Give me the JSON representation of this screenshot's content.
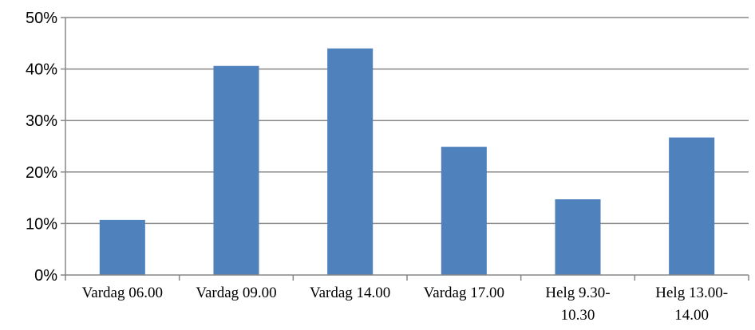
{
  "chart_data": {
    "type": "bar",
    "title": "",
    "xlabel": "",
    "ylabel": "",
    "categories": [
      [
        "Vardag 06.00"
      ],
      [
        "Vardag 09.00"
      ],
      [
        "Vardag 14.00"
      ],
      [
        "Vardag 17.00"
      ],
      [
        "Helg 9.30-",
        "10.30"
      ],
      [
        "Helg 13.00-",
        "14.00"
      ]
    ],
    "values": [
      10.7,
      40.6,
      44.0,
      24.9,
      14.7,
      26.7
    ],
    "ylim": [
      0,
      50
    ],
    "yticks": [
      0,
      10,
      20,
      30,
      40,
      50
    ],
    "ytick_labels": [
      "0%",
      "10%",
      "20%",
      "30%",
      "40%",
      "50%"
    ],
    "grid": true,
    "legend": "none",
    "bar_color": "#4f81bd",
    "grid_color": "#878787"
  }
}
